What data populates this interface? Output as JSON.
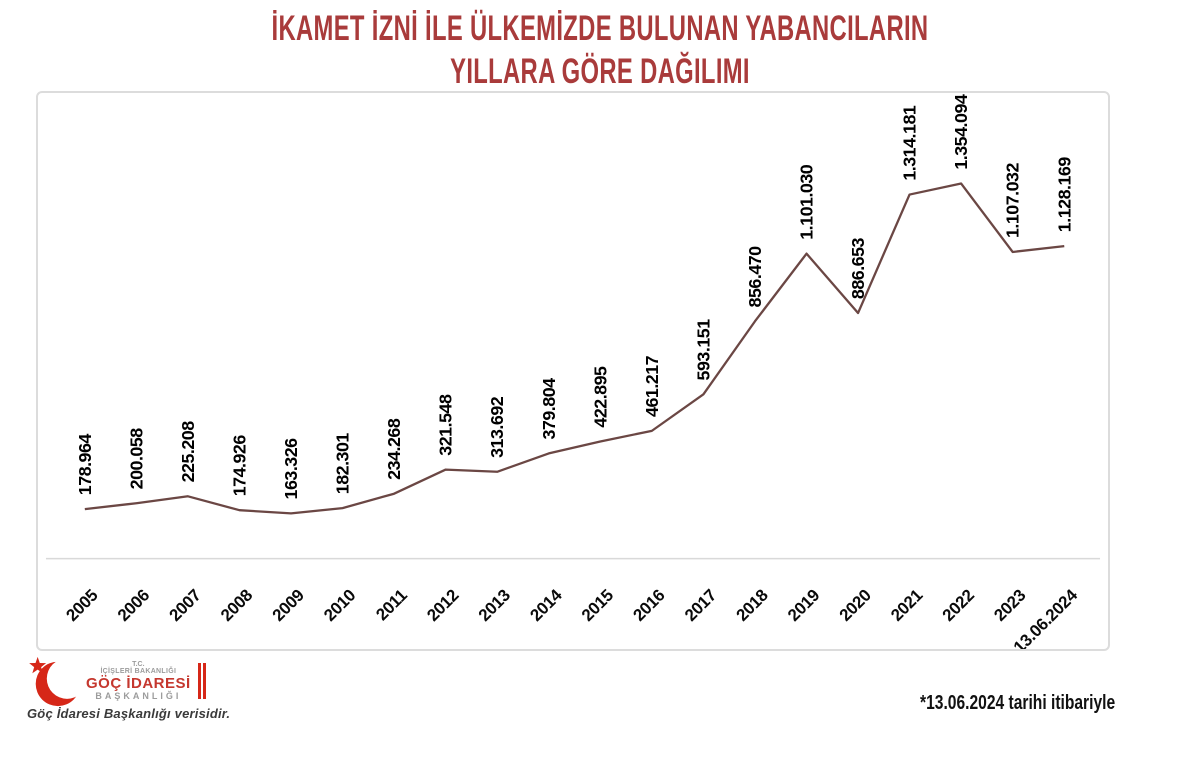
{
  "title": {
    "line1": "İKAMET İZNİ İLE ÜLKEMİZDE BULUNAN YABANCILARIN",
    "line2": "YILLARA GÖRE DAĞILIMI"
  },
  "chart_data": {
    "type": "line",
    "title": "İKAMET İZNİ İLE ÜLKEMİZDE BULUNAN YABANCILARIN YILLARA GÖRE DAĞILIMI",
    "categories": [
      "2005",
      "2006",
      "2007",
      "2008",
      "2009",
      "2010",
      "2011",
      "2012",
      "2013",
      "2014",
      "2015",
      "2016",
      "2017",
      "2018",
      "2019",
      "2020",
      "2021",
      "2022",
      "2023",
      "13.06.2024"
    ],
    "values": [
      178964,
      200058,
      225208,
      174926,
      163326,
      182301,
      234268,
      321548,
      313692,
      379804,
      422895,
      461217,
      593151,
      856470,
      1101030,
      886653,
      1314181,
      1354094,
      1107032,
      1128169
    ],
    "value_labels": [
      "178.964",
      "200.058",
      "225.208",
      "174.926",
      "163.326",
      "182.301",
      "234.268",
      "321.548",
      "313.692",
      "379.804",
      "422.895",
      "461.217",
      "593.151",
      "856.470",
      "1.101.030",
      "886.653",
      "1.314.181",
      "1.354.094",
      "1.107.032",
      "1.128.169"
    ],
    "xlabel": "",
    "ylabel": "",
    "ylim": [
      0,
      1470000
    ],
    "grid": false,
    "legend": false,
    "line_color": "#6b4744",
    "label_color": "#000000"
  },
  "footnote": "*13.06.2024 tarihi itibariyle",
  "logo": {
    "tc": "T.C.",
    "ministry": "İÇİŞLERİ BAKANLIĞI",
    "agency_line1": "GÖÇ İDARESİ",
    "agency_line2": "BAŞKANLIĞI",
    "caption": "Göç İdaresi Başkanlığı verisidir."
  },
  "colors": {
    "title_red": "#A93B3B",
    "chart_border": "#dcdcdc",
    "axis_gray": "#d9d9d9",
    "line_maroon": "#6b4744",
    "logo_red": "#D62718",
    "logo_text_red": "#C5372E",
    "logo_gray": "#9c9c9c"
  }
}
